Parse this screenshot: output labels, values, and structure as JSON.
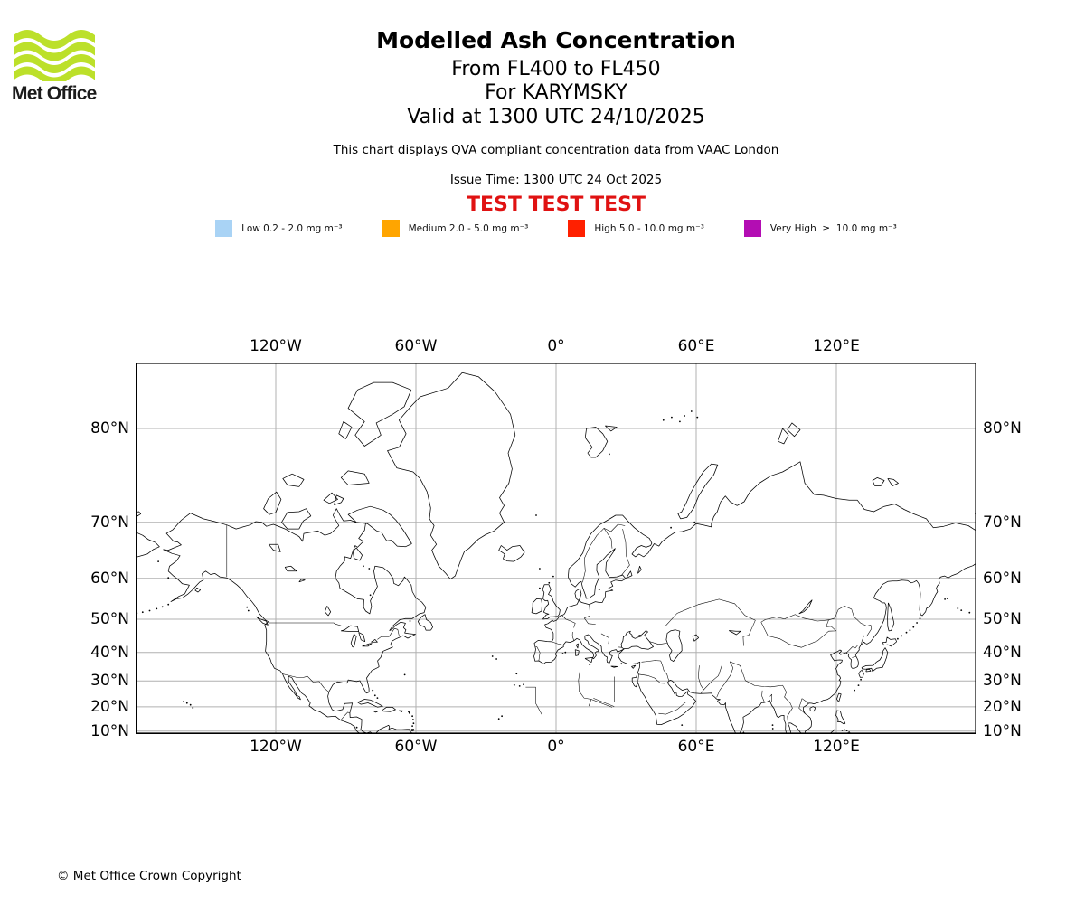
{
  "logo": {
    "text": "Met Office",
    "wave_color": "#BCE02A"
  },
  "header": {
    "title": "Modelled Ash Concentration",
    "subtitle_levels": "From FL400 to FL450",
    "subtitle_volcano": "For KARYMSKY",
    "subtitle_valid": "Valid at 1300 UTC 24/10/2025",
    "description": "This chart displays QVA compliant concentration data from VAAC London",
    "issue_time": "Issue Time: 1300 UTC 24 Oct 2025",
    "watermark": "TEST TEST TEST",
    "watermark_color": "#E01212"
  },
  "legend": {
    "items": [
      {
        "label": "Low 0.2 - 2.0 mg m⁻³",
        "color": "#A9D3F5"
      },
      {
        "label": "Medium 2.0 - 5.0 mg m⁻³",
        "color": "#FFA500"
      },
      {
        "label": "High 5.0 - 10.0 mg m⁻³",
        "color": "#FF2000"
      },
      {
        "label": "Very High  ≥  10.0 mg m⁻³",
        "color": "#B30DB3"
      }
    ]
  },
  "map": {
    "grid_color": "#b0b0b0",
    "frame_color": "#000000",
    "lon_ticks": [
      {
        "value": -120,
        "label": "120°W"
      },
      {
        "value": -60,
        "label": "60°W"
      },
      {
        "value": 0,
        "label": "0°"
      },
      {
        "value": 60,
        "label": "60°E"
      },
      {
        "value": 120,
        "label": "120°E"
      }
    ],
    "lat_ticks": [
      {
        "value": 80,
        "label": "80°N"
      },
      {
        "value": 70,
        "label": "70°N"
      },
      {
        "value": 60,
        "label": "60°N"
      },
      {
        "value": 50,
        "label": "50°N"
      },
      {
        "value": 40,
        "label": "40°N"
      },
      {
        "value": 30,
        "label": "30°N"
      },
      {
        "value": 20,
        "label": "20°N"
      },
      {
        "value": 10,
        "label": "10°N"
      }
    ]
  },
  "footer": {
    "copyright": "© Met Office Crown Copyright"
  }
}
